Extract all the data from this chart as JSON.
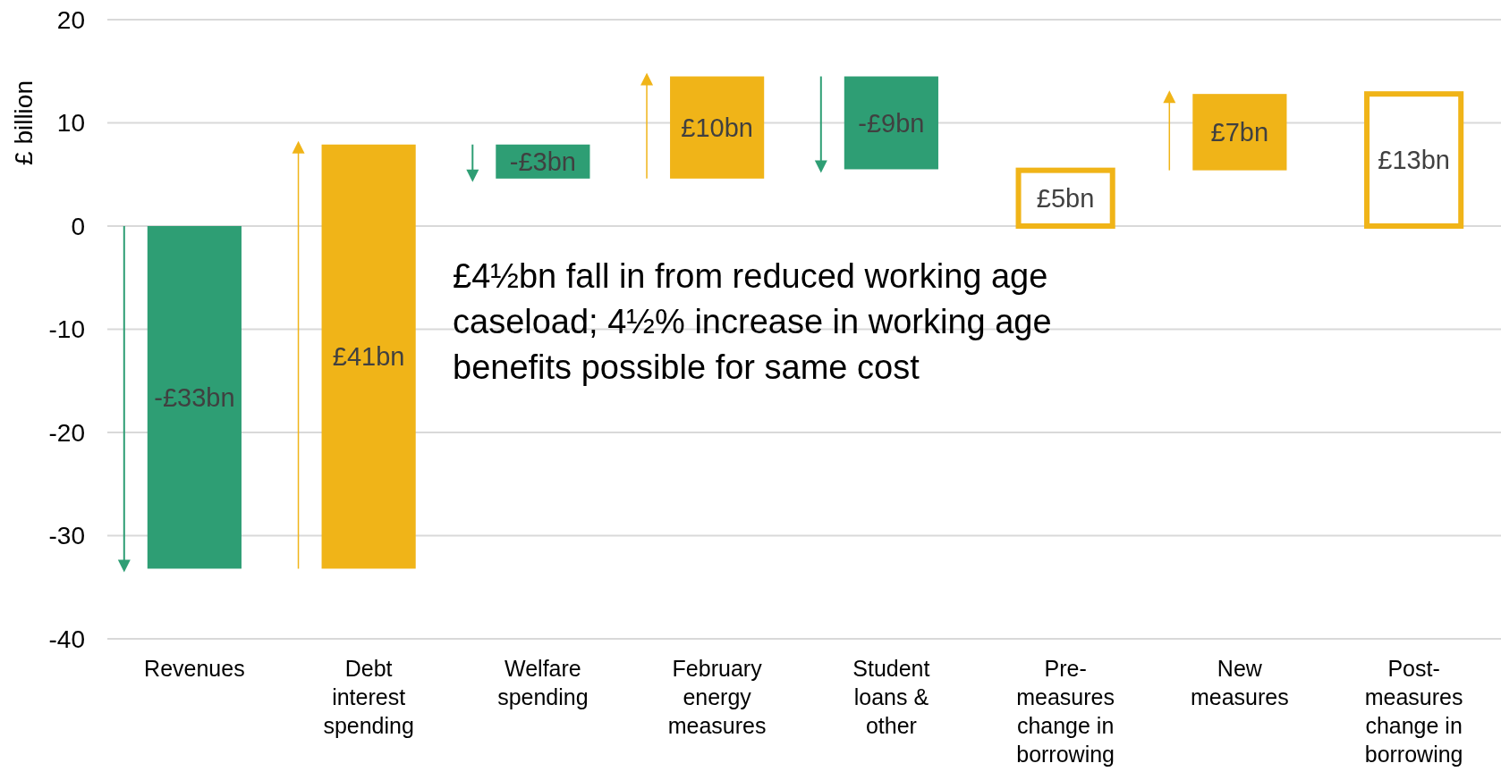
{
  "chart_data": {
    "type": "bar",
    "ylabel": "£ billion",
    "categories": [
      "Revenues",
      "Debt interest spending",
      "Welfare spending",
      "February energy measures",
      "Student loans & other",
      "Pre-measures change in borrowing",
      "New measures",
      "Post-measures change in borrowing"
    ],
    "series": [
      {
        "values": [
          -33.2,
          41.1,
          -3.3,
          9.9,
          -9.0,
          null,
          7.4,
          null
        ],
        "base": [
          0,
          -33.2,
          7.9,
          4.6,
          14.5,
          null,
          5.4,
          null
        ],
        "colors": [
          "#2e9e74",
          "#f0b418",
          "#2e9e74",
          "#f0b418",
          "#2e9e74",
          null,
          "#f0b418",
          null
        ],
        "value_labels": [
          "-£33bn",
          "£41bn",
          "-£3bn",
          "£10bn",
          "-£9bn",
          null,
          "£7bn",
          null
        ]
      },
      {
        "values": [
          null,
          null,
          null,
          null,
          null,
          5.4,
          null,
          12.8
        ],
        "base": [
          null,
          null,
          null,
          null,
          null,
          0,
          null,
          0
        ],
        "color": "#f0b418",
        "value_labels": [
          null,
          null,
          null,
          null,
          null,
          "£5bn",
          null,
          "£13bn"
        ]
      }
    ],
    "ylim": [
      -40,
      20
    ],
    "yticks": [
      -40,
      -30,
      -20,
      -10,
      0,
      10,
      20
    ],
    "grid": "y",
    "annotations": [
      "£4½bn fall in from reduced working age caseload; 4½% increase in working age benefits possible for same cost"
    ]
  }
}
